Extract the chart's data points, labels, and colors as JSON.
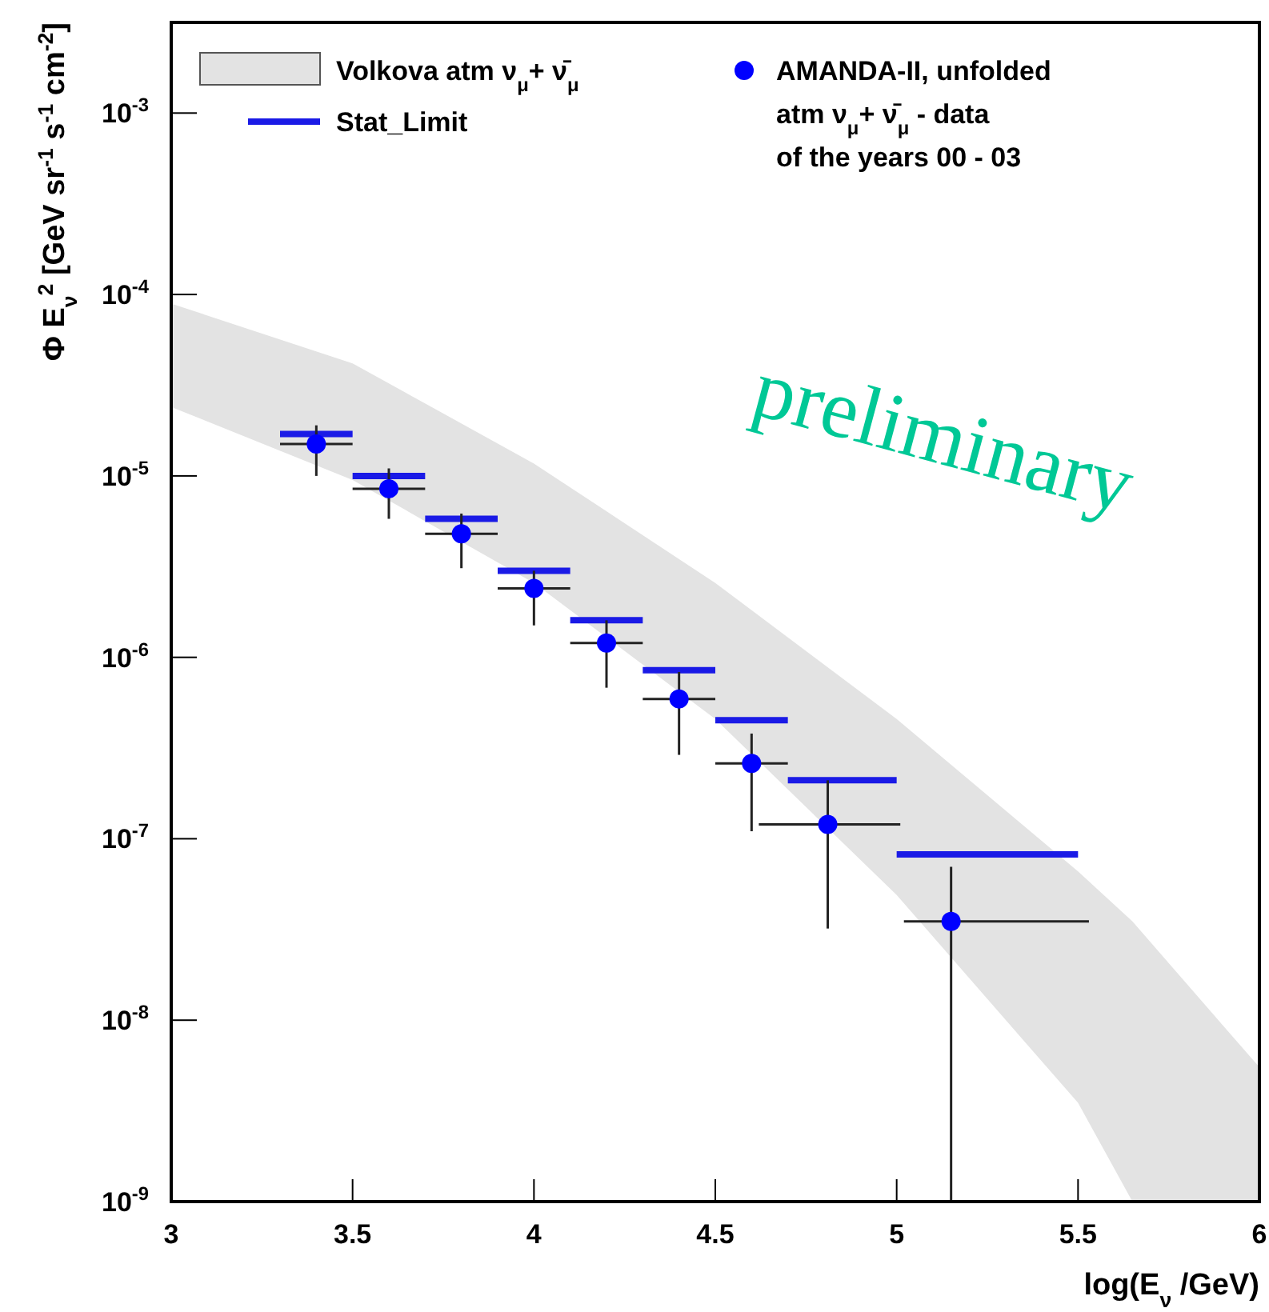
{
  "chart_data": {
    "type": "scatter",
    "xlabel": "log(E$_{ν}$ /GeV)",
    "ylabel": "Φ E$_{ν}$$^{2}$ [GeV sr$^{-1}$ s$^{-1}$ cm$^{-2}$]",
    "log": "y",
    "xlim": [
      3,
      6
    ],
    "xticks": [
      3,
      3.5,
      4,
      4.5,
      5,
      5.5,
      6
    ],
    "ylim": [
      1e-09,
      0.00316
    ],
    "yticks": [
      {
        "value": 0.001,
        "label": "10$^{-3}$"
      },
      {
        "value": 0.0001,
        "label": "10$^{-4}$"
      },
      {
        "value": 1e-05,
        "label": "10$^{-5}$"
      },
      {
        "value": 1e-06,
        "label": "10$^{-6}$"
      },
      {
        "value": 1e-07,
        "label": "10$^{-7}$"
      },
      {
        "value": 1e-08,
        "label": "10$^{-8}$"
      },
      {
        "value": 1e-09,
        "label": "10$^{-9}$"
      }
    ],
    "legend": "top",
    "grid": false,
    "series": [
      {
        "name": "Volkova  atm ν$_{μ}$+ ν̄$_{μ}$",
        "type": "line",
        "color": "#e3e3e3",
        "x": [
          3,
          3.5,
          4,
          4.5,
          5,
          5.5,
          5.65,
          6
        ],
        "values": [
          null,
          null,
          null,
          null,
          null,
          null,
          null,
          null
        ],
        "upper": [
          8.91e-05,
          4.17e-05,
          1.17e-05,
          2.57e-06,
          4.57e-07,
          6.61e-08,
          3.5e-08,
          5.5e-09
        ],
        "lower": [
          2.4e-05,
          9.5e-06,
          2.57e-06,
          4.57e-07,
          4.9e-08,
          3.5e-09,
          1e-09,
          1e-09
        ]
      },
      {
        "name": "Stat_Limit",
        "type": "line",
        "color": "#1a1ae6",
        "x": [
          3.3,
          3.5
        ],
        "values": [
          1.7e-05,
          1.7e-05
        ]
      },
      {
        "type": "line",
        "color": "#1a1ae6",
        "x": [
          3.5,
          3.7
        ],
        "values": [
          1e-05,
          1e-05
        ]
      },
      {
        "type": "line",
        "color": "#1a1ae6",
        "x": [
          3.7,
          3.9
        ],
        "values": [
          5.8e-06,
          5.8e-06
        ]
      },
      {
        "type": "line",
        "color": "#1a1ae6",
        "x": [
          3.9,
          4.1
        ],
        "values": [
          3e-06,
          3e-06
        ]
      },
      {
        "type": "line",
        "color": "#1a1ae6",
        "x": [
          4.1,
          4.3
        ],
        "values": [
          1.6e-06,
          1.6e-06
        ]
      },
      {
        "type": "line",
        "color": "#1a1ae6",
        "x": [
          4.3,
          4.5
        ],
        "values": [
          8.5e-07,
          8.5e-07
        ]
      },
      {
        "type": "line",
        "color": "#1a1ae6",
        "x": [
          4.5,
          4.7
        ],
        "values": [
          4.5e-07,
          4.5e-07
        ]
      },
      {
        "type": "line",
        "color": "#1a1ae6",
        "x": [
          4.7,
          5.0
        ],
        "values": [
          2.1e-07,
          2.1e-07
        ]
      },
      {
        "type": "line",
        "color": "#1a1ae6",
        "x": [
          5.0,
          5.5
        ],
        "values": [
          8.2e-08,
          8.2e-08
        ]
      },
      {
        "name": "AMANDA-II, unfolded\natm ν$_{μ}$+ ν̄$_{μ}$ - data\nof the years 00 - 03",
        "marker": "circle",
        "color": "#0000ff",
        "x": [
          3.4,
          3.6,
          3.8,
          4.0,
          4.2,
          4.4,
          4.6,
          4.81,
          5.15
        ],
        "values": [
          1.5e-05,
          8.5e-06,
          4.8e-06,
          2.4e-06,
          1.2e-06,
          5.9e-07,
          2.6e-07,
          1.2e-07,
          3.5e-08
        ],
        "errors": [
          [
            1e-05,
            1.9e-05
          ],
          [
            5.8e-06,
            1.1e-05
          ],
          [
            3.1e-06,
            6.2e-06
          ],
          [
            1.5e-06,
            3e-06
          ],
          [
            6.8e-07,
            1.6e-06
          ],
          [
            2.9e-07,
            8.3e-07
          ],
          [
            1.1e-07,
            3.8e-07
          ],
          [
            3.2e-08,
            2.1e-07
          ],
          [
            1e-09,
            7e-08
          ]
        ],
        "xerrors": [
          [
            3.3,
            3.5
          ],
          [
            3.5,
            3.7
          ],
          [
            3.7,
            3.9
          ],
          [
            3.9,
            4.1
          ],
          [
            4.1,
            4.3
          ],
          [
            4.3,
            4.5
          ],
          [
            4.5,
            4.7
          ],
          [
            4.62,
            5.01
          ],
          [
            5.02,
            5.53
          ]
        ]
      }
    ],
    "annotations": [
      "preliminary"
    ]
  }
}
